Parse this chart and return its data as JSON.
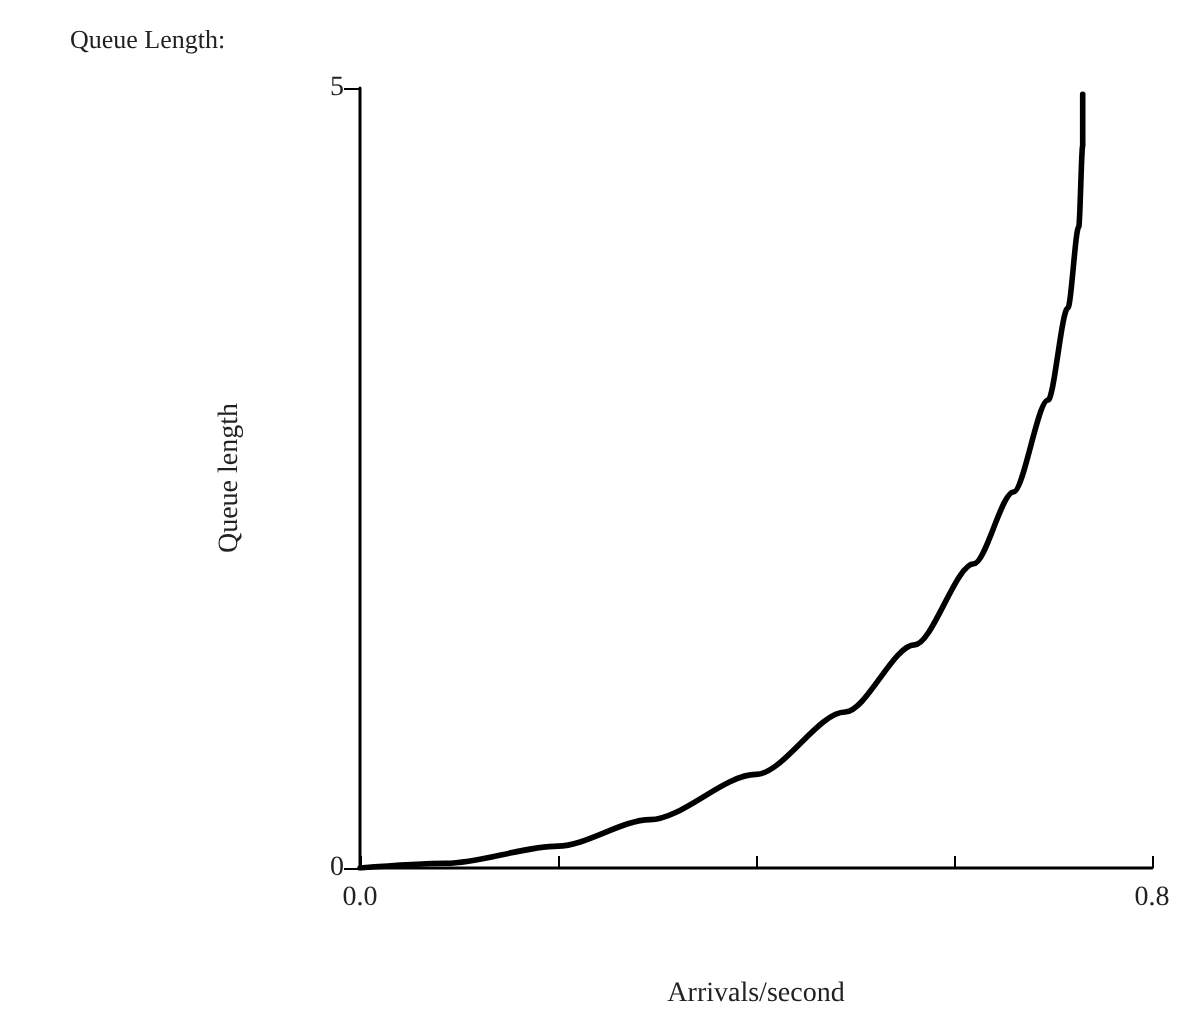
{
  "chart_data": {
    "type": "line",
    "title": "Queue Length:",
    "xlabel": "Arrivals/second",
    "ylabel": "Queue length",
    "x": [
      0,
      0.087,
      0.2,
      0.293,
      0.4,
      0.49,
      0.56,
      0.62,
      0.66,
      0.695,
      0.715,
      0.726,
      0.73,
      0.73
    ],
    "series": [
      {
        "color": "#000000",
        "values": [
          0,
          0.03,
          0.14,
          0.31,
          0.6,
          1.0,
          1.43,
          1.95,
          2.41,
          3.0,
          3.59,
          4.11,
          4.63,
          4.96
        ]
      }
    ],
    "xlim": [
      0,
      0.8
    ],
    "xticks": [
      {
        "value": 0,
        "label": "0.0"
      },
      {
        "value": 0.2,
        "label": null
      },
      {
        "value": 0.4,
        "label": null
      },
      {
        "value": 0.6,
        "label": null
      },
      0.8
    ],
    "ylim": [
      0,
      5
    ],
    "yticks": [
      0,
      5
    ],
    "grid": false
  }
}
